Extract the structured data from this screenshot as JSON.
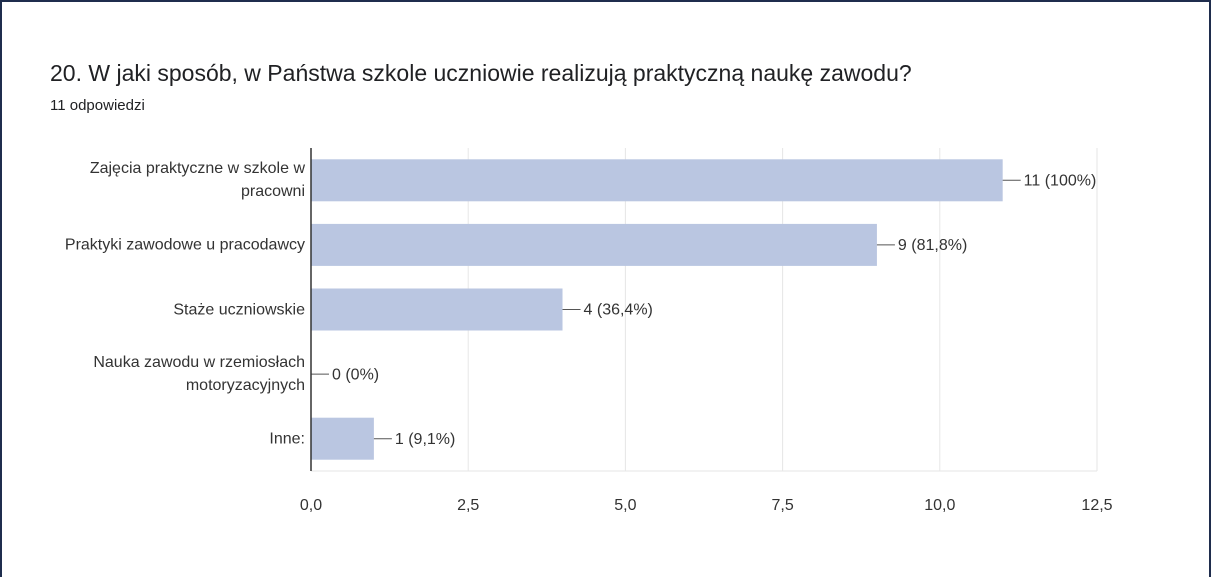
{
  "chart_data": {
    "type": "bar",
    "orientation": "horizontal",
    "title": "20. W jaki sposób, w Państwa szkole uczniowie realizują praktyczną naukę zawodu?",
    "subtitle": "11 odpowiedzi",
    "categories": [
      "Zajęcia praktyczne w szkole w pracowni",
      "Praktyki zawodowe u pracodawcy",
      "Staże uczniowskie",
      "Nauka zawodu w rzemiosłach motoryzacyjnych",
      "Inne:"
    ],
    "values": [
      11,
      9,
      4,
      0,
      1
    ],
    "value_labels": [
      "11 (100%)",
      "9 (81,8%)",
      "4 (36,4%)",
      "0 (0%)",
      "1 (9,1%)"
    ],
    "color": "#bac6e1",
    "xlim": [
      0,
      12.5
    ],
    "xticks": [
      {
        "value": 0,
        "label": "0,0"
      },
      {
        "value": 2.5,
        "label": "2,5"
      },
      {
        "value": 5,
        "label": "5,0"
      },
      {
        "value": 7.5,
        "label": "7,5"
      },
      {
        "value": 10,
        "label": "10,0"
      },
      {
        "value": 12.5,
        "label": "12,5"
      }
    ],
    "grid": true
  }
}
